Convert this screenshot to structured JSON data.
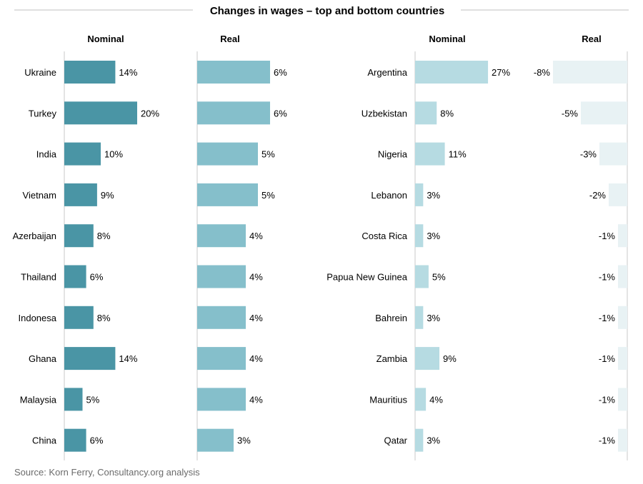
{
  "title": "Changes in wages – top and bottom countries",
  "source": "Source: Korn Ferry, Consultancy.org analysis",
  "colors": {
    "top_nominal": "#4a95a5",
    "top_real": "#85bfcb",
    "bottom_nominal": "#b6dbe2",
    "bottom_real": "#e8f2f4",
    "axis_line": "#c8c8c8",
    "title_rule": "#bfbfbf"
  },
  "chart_data": [
    {
      "type": "bar",
      "orientation": "horizontal",
      "group": "Top countries",
      "categories": [
        "Ukraine",
        "Turkey",
        "India",
        "Vietnam",
        "Azerbaijan",
        "Thailand",
        "Indonesa",
        "Ghana",
        "Malaysia",
        "China"
      ],
      "series": [
        {
          "name": "Nominal",
          "values": [
            14,
            20,
            10,
            9,
            8,
            6,
            8,
            14,
            5,
            6
          ],
          "labels": [
            "14%",
            "20%",
            "10%",
            "9%",
            "8%",
            "6%",
            "8%",
            "14%",
            "5%",
            "6%"
          ]
        },
        {
          "name": "Real",
          "values": [
            6,
            6,
            5,
            5,
            4,
            4,
            4,
            4,
            4,
            3
          ],
          "labels": [
            "6%",
            "6%",
            "5%",
            "5%",
            "4%",
            "4%",
            "4%",
            "4%",
            "4%",
            "3%"
          ]
        }
      ]
    },
    {
      "type": "bar",
      "orientation": "horizontal",
      "group": "Bottom countries",
      "categories": [
        "Argentina",
        "Uzbekistan",
        "Nigeria",
        "Lebanon",
        "Costa Rica",
        "Papua New Guinea",
        "Bahrein",
        "Zambia",
        "Mauritius",
        "Qatar"
      ],
      "series": [
        {
          "name": "Nominal",
          "values": [
            27,
            8,
            11,
            3,
            3,
            5,
            3,
            9,
            4,
            3
          ],
          "labels": [
            "27%",
            "8%",
            "11%",
            "3%",
            "3%",
            "5%",
            "3%",
            "9%",
            "4%",
            "3%"
          ]
        },
        {
          "name": "Real",
          "values": [
            -8,
            -5,
            -3,
            -2,
            -1,
            -1,
            -1,
            -1,
            -1,
            -1
          ],
          "labels": [
            "-8%",
            "-5%",
            "-3%",
            "-2%",
            "-1%",
            "-1%",
            "-1%",
            "-1%",
            "-1%",
            "-1%"
          ]
        }
      ]
    }
  ]
}
